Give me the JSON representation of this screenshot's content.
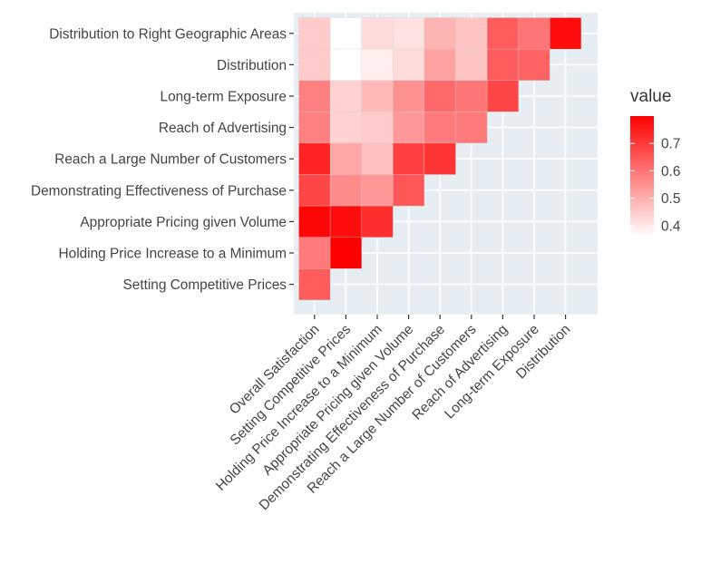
{
  "chart_data": {
    "type": "heatmap",
    "title": "",
    "xlabel": "",
    "ylabel": "",
    "x_categories": [
      "Overall Satisfaction",
      "Setting Competitive Prices",
      "Holding Price Increase to a Minimum",
      "Appropriate Pricing given Volume",
      "Demonstrating Effectiveness of Purchase",
      "Reach a Large Number of Customers",
      "Reach of Advertising",
      "Long-term Exposure",
      "Distribution"
    ],
    "y_categories": [
      "Distribution to Right Geographic Areas",
      "Distribution",
      "Long-term Exposure",
      "Reach of Advertising",
      "Reach a Large Number of Customers",
      "Demonstrating Effectiveness of Purchase",
      "Appropriate Pricing given Volume",
      "Holding Price Increase to a Minimum",
      "Setting Competitive Prices"
    ],
    "values": [
      [
        0.45,
        0.36,
        0.42,
        0.41,
        0.49,
        0.46,
        0.64,
        0.6,
        0.78
      ],
      [
        0.45,
        0.36,
        0.39,
        0.42,
        0.52,
        0.46,
        0.64,
        0.63,
        null
      ],
      [
        0.58,
        0.44,
        0.48,
        0.55,
        0.62,
        0.6,
        0.68,
        null,
        null
      ],
      [
        0.58,
        0.44,
        0.45,
        0.54,
        0.59,
        0.59,
        null,
        null,
        null
      ],
      [
        0.74,
        0.51,
        0.47,
        0.69,
        0.71,
        null,
        null,
        null,
        null
      ],
      [
        0.68,
        0.56,
        0.54,
        0.65,
        null,
        null,
        null,
        null,
        null
      ],
      [
        0.79,
        0.78,
        0.72,
        null,
        null,
        null,
        null,
        null,
        null
      ],
      [
        0.59,
        0.8,
        null,
        null,
        null,
        null,
        null,
        null,
        null
      ],
      [
        0.64,
        null,
        null,
        null,
        null,
        null,
        null,
        null,
        null
      ]
    ],
    "legend": {
      "title": "value",
      "ticks": [
        0.4,
        0.5,
        0.6,
        0.7
      ],
      "tick_labels": [
        "0.4",
        "0.5",
        "0.6",
        "0.7"
      ],
      "range": [
        0.36,
        0.8
      ],
      "low_color": "#ffffff",
      "high_color": "#ff0000",
      "placement": "right"
    },
    "panel_background": "#e6eef3",
    "grid": true
  }
}
